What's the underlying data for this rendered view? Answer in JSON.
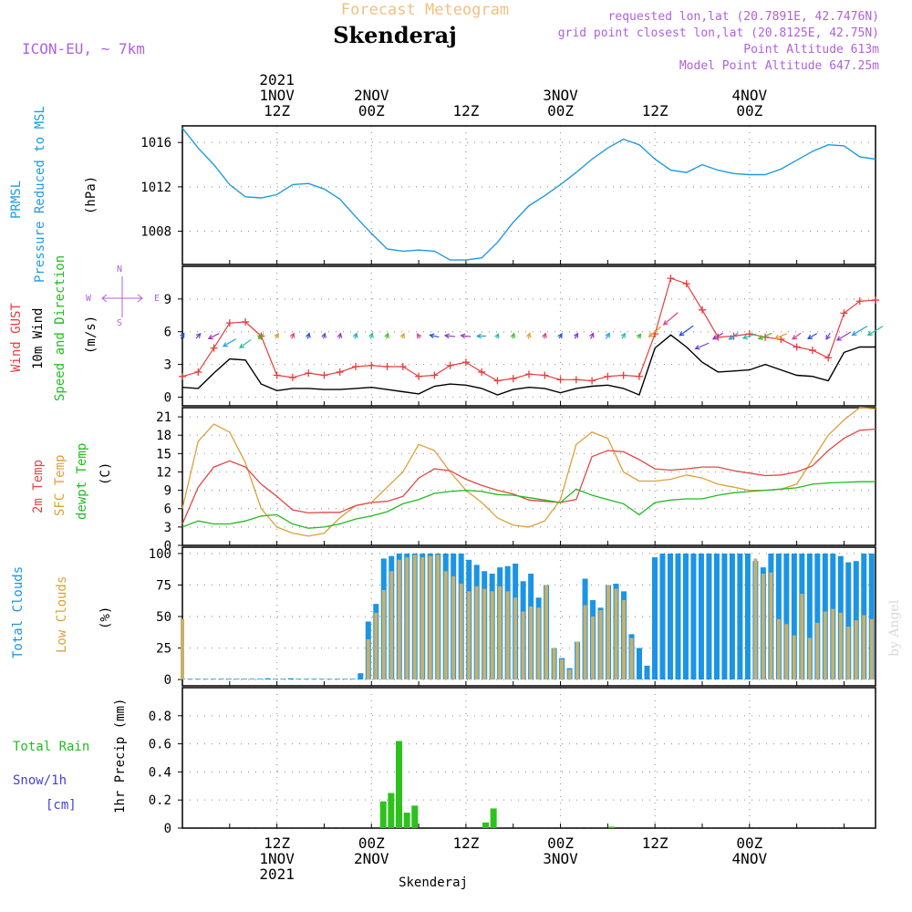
{
  "header": {
    "product": "Forecast Meteogram",
    "model": "ICON-EU, ~ 7km",
    "location": "Skenderaj",
    "requested": "requested lon,lat (20.7891E, 42.7476N)",
    "grid_point": "grid point closest lon,lat (20.8125E, 42.75N)",
    "altitude": "Point Altitude 613m",
    "model_altitude": "Model Point Altitude 647.25m",
    "footer": "Skenderaj",
    "watermark": "by Angel"
  },
  "time_axis": {
    "top_labels": [
      {
        "h": 12,
        "lines": [
          "2021",
          "1NOV",
          "12Z"
        ]
      },
      {
        "h": 24,
        "lines": [
          "2NOV",
          "00Z"
        ]
      },
      {
        "h": 36,
        "lines": [
          "12Z"
        ]
      },
      {
        "h": 48,
        "lines": [
          "3NOV",
          "00Z"
        ]
      },
      {
        "h": 60,
        "lines": [
          "12Z"
        ]
      },
      {
        "h": 72,
        "lines": [
          "4NOV",
          "00Z"
        ]
      }
    ],
    "bottom_labels": [
      {
        "h": 12,
        "lines": [
          "12Z",
          "1NOV",
          "2021"
        ]
      },
      {
        "h": 24,
        "lines": [
          "00Z",
          "2NOV"
        ]
      },
      {
        "h": 36,
        "lines": [
          "12Z"
        ]
      },
      {
        "h": 48,
        "lines": [
          "00Z",
          "3NOV"
        ]
      },
      {
        "h": 60,
        "lines": [
          "12Z"
        ]
      },
      {
        "h": 72,
        "lines": [
          "00Z",
          "4NOV"
        ]
      }
    ]
  },
  "panels": {
    "pressure": {
      "labels": [
        "PRMSL",
        "Pressure Reduced to MSL"
      ],
      "unit": "(hPa)"
    },
    "wind": {
      "labels": [
        "Wind GUST",
        "10m Wind",
        "Speed and Direction"
      ],
      "unit": "(m/s)",
      "compass": [
        "N",
        "S",
        "W",
        "E"
      ]
    },
    "temp": {
      "labels": [
        "2m Temp",
        "SFC Temp",
        "dewpt Temp"
      ],
      "unit": "(C)"
    },
    "clouds": {
      "labels": [
        "Total Clouds",
        "Low Clouds"
      ],
      "unit": "(%)"
    },
    "precip": {
      "labels": [
        "Total  Rain",
        "Snow/1h",
        "[cm]"
      ],
      "unit": "1hr Precip (mm)"
    }
  },
  "colors": {
    "pressure": "#1e9be0",
    "gust": "#e83c3c",
    "wind": "#000000",
    "temp2m": "#e04848",
    "sfc": "#dca03a",
    "dewpt": "#22bb22",
    "total_clouds": "#1b94e4",
    "low_clouds": "#c8b06c",
    "rain": "#2cc21c",
    "label_purple": "#b060e0",
    "header_orange": "#f0c080"
  },
  "chart_data": [
    {
      "type": "line",
      "name": "pressure",
      "ylabel": "(hPa)",
      "ylim": [
        1005,
        1017.5
      ],
      "yticks": [
        1008,
        1012,
        1016
      ],
      "x": [
        0,
        2,
        4,
        6,
        8,
        10,
        12,
        14,
        16,
        18,
        20,
        22,
        24,
        26,
        28,
        30,
        32,
        34,
        36,
        38,
        40,
        42,
        44,
        46,
        48,
        50,
        52,
        54,
        56,
        58,
        60,
        62,
        64,
        66,
        68,
        70,
        72,
        74,
        76,
        78,
        80,
        82,
        84,
        86,
        88
      ],
      "values": [
        1017.3,
        1015.5,
        1014,
        1012.2,
        1011.1,
        1011,
        1011.3,
        1012.2,
        1012.3,
        1011.8,
        1010.9,
        1009.3,
        1007.8,
        1006.4,
        1006.2,
        1006.3,
        1006.2,
        1005.4,
        1005.4,
        1005.6,
        1007.0,
        1008.8,
        1010.3,
        1011.2,
        1012.2,
        1013.3,
        1014.5,
        1015.5,
        1016.3,
        1015.8,
        1014.5,
        1013.5,
        1013.3,
        1014.0,
        1013.5,
        1013.2,
        1013.1,
        1013.1,
        1013.6,
        1014.4,
        1015.2,
        1015.8,
        1015.7,
        1014.7,
        1014.5
      ]
    },
    {
      "type": "line",
      "name": "wind",
      "ylabel": "(m/s)",
      "ylim": [
        -0.8,
        12
      ],
      "yticks": [
        0,
        3,
        6,
        9
      ],
      "x": [
        0,
        2,
        4,
        6,
        8,
        10,
        12,
        14,
        16,
        18,
        20,
        22,
        24,
        26,
        28,
        30,
        32,
        34,
        36,
        38,
        40,
        42,
        44,
        46,
        48,
        50,
        52,
        54,
        56,
        58,
        60,
        62,
        64,
        66,
        68,
        70,
        72,
        74,
        76,
        78,
        80,
        82,
        84,
        86,
        88
      ],
      "gust": [
        1.9,
        2.3,
        4.5,
        6.8,
        6.9,
        5.6,
        2.0,
        1.8,
        2.2,
        2.0,
        2.3,
        2.8,
        2.9,
        2.8,
        2.8,
        1.9,
        2.0,
        2.9,
        3.2,
        2.3,
        1.5,
        1.7,
        2.1,
        2.0,
        1.6,
        1.6,
        1.5,
        1.9,
        2.0,
        1.9,
        5.8,
        10.9,
        10.4,
        8.0,
        5.5,
        5.6,
        5.8,
        5.5,
        5.3,
        4.6,
        4.3,
        3.6,
        7.7,
        8.8,
        8.9
      ],
      "speed": [
        0.9,
        0.8,
        2.2,
        3.5,
        3.4,
        1.2,
        0.6,
        0.8,
        0.8,
        0.7,
        0.7,
        0.8,
        0.9,
        0.7,
        0.5,
        0.3,
        1.0,
        1.2,
        1.1,
        0.8,
        0.2,
        0.7,
        0.9,
        0.8,
        0.4,
        0.8,
        1.0,
        1.1,
        0.8,
        0.2,
        4.5,
        5.7,
        4.6,
        3.2,
        2.3,
        2.4,
        2.5,
        3.0,
        2.5,
        2.0,
        1.9,
        1.5,
        4.1,
        4.6,
        4.6
      ],
      "arrows_x": [
        0,
        2,
        4,
        6,
        8,
        10,
        12,
        14,
        16,
        18,
        20,
        22,
        24,
        26,
        28,
        30,
        32,
        34,
        36,
        38,
        40,
        42,
        44,
        46,
        48,
        50,
        52,
        54,
        56,
        58,
        60,
        62,
        64,
        66,
        68,
        70,
        72,
        74,
        76,
        78,
        80,
        82,
        84,
        86,
        88
      ],
      "arrows_dir": [
        70,
        60,
        220,
        225,
        230,
        240,
        70,
        75,
        80,
        80,
        80,
        80,
        80,
        80,
        75,
        110,
        160,
        170,
        170,
        180,
        75,
        80,
        80,
        80,
        70,
        70,
        75,
        70,
        70,
        65,
        235,
        235,
        230,
        215,
        225,
        230,
        210,
        215,
        215,
        230,
        225,
        250,
        225,
        225,
        225
      ]
    },
    {
      "type": "line",
      "name": "temperature",
      "ylabel": "(C)",
      "ylim": [
        0,
        22.5
      ],
      "yticks": [
        0,
        3,
        6,
        9,
        12,
        15,
        18,
        21
      ],
      "x": [
        0,
        2,
        4,
        6,
        8,
        10,
        12,
        14,
        16,
        18,
        20,
        22,
        24,
        26,
        28,
        30,
        32,
        34,
        36,
        38,
        40,
        42,
        44,
        46,
        48,
        50,
        52,
        54,
        56,
        58,
        60,
        62,
        64,
        66,
        68,
        70,
        72,
        74,
        76,
        78,
        80,
        82,
        84,
        86,
        88
      ],
      "temp2m": [
        3.5,
        9.5,
        12.8,
        13.8,
        12.8,
        10.0,
        8.0,
        5.8,
        5.3,
        5.4,
        5.4,
        6.5,
        7.0,
        7.2,
        8.0,
        11.0,
        12.5,
        12.2,
        10.8,
        9.8,
        9.0,
        8.4,
        7.4,
        7.2,
        7.0,
        7.5,
        14.5,
        15.5,
        15.3,
        14.0,
        12.5,
        12.3,
        12.5,
        12.8,
        12.8,
        12.2,
        11.8,
        11.4,
        11.5,
        12.0,
        13.0,
        15.5,
        17.5,
        18.8,
        19.0
      ],
      "sfc": [
        6.0,
        17.0,
        19.8,
        18.5,
        13.5,
        6.0,
        3.0,
        2.0,
        1.5,
        2.0,
        4.5,
        6.5,
        7.0,
        9.5,
        12.0,
        16.5,
        15.5,
        12.0,
        9.0,
        7.0,
        4.5,
        3.3,
        3.0,
        4.0,
        7.5,
        16.5,
        18.5,
        17.5,
        12.0,
        10.5,
        10.5,
        10.8,
        11.5,
        11.0,
        10.0,
        9.5,
        9.0,
        9.0,
        9.2,
        10.0,
        14.0,
        18.0,
        20.5,
        22.5,
        22.3
      ],
      "dewpt": [
        3.0,
        4.0,
        3.5,
        3.5,
        4.0,
        4.8,
        5.0,
        3.5,
        2.8,
        3.0,
        3.5,
        4.3,
        4.8,
        5.5,
        6.8,
        7.5,
        8.5,
        8.8,
        9.0,
        8.8,
        8.3,
        8.2,
        7.8,
        7.4,
        7.0,
        9.2,
        8.2,
        7.5,
        6.8,
        5.0,
        7.0,
        7.4,
        7.6,
        7.6,
        8.2,
        8.6,
        8.8,
        9.0,
        9.2,
        9.4,
        10.0,
        10.2,
        10.3,
        10.4,
        10.4
      ]
    },
    {
      "type": "bar",
      "name": "clouds",
      "ylabel": "(%)",
      "ylim": [
        -5,
        105
      ],
      "yticks": [
        0,
        25,
        50,
        75,
        100
      ],
      "total": [
        0,
        0,
        0,
        0,
        0,
        0,
        0,
        0,
        0,
        0,
        0,
        1,
        0,
        0,
        1,
        0,
        0,
        0,
        0,
        0,
        0,
        0,
        0,
        5,
        46,
        60,
        96,
        98,
        100,
        100,
        100,
        100,
        100,
        100,
        100,
        100,
        100,
        95,
        91,
        86,
        84,
        89,
        90,
        92,
        78,
        84,
        65,
        75,
        25,
        17,
        9,
        30,
        80,
        63,
        57,
        75,
        76,
        70,
        36,
        25,
        11,
        97,
        100,
        100,
        100,
        100,
        100,
        100,
        100,
        100,
        100,
        100,
        100,
        100,
        94,
        89,
        100,
        100,
        100,
        100,
        100,
        100,
        100,
        100,
        100,
        98,
        93,
        94,
        100,
        100
      ],
      "low": [
        48,
        0,
        0,
        0,
        0,
        0,
        0,
        0,
        0,
        0,
        0,
        0,
        0,
        0,
        0,
        0,
        0,
        0,
        0,
        0,
        0,
        0,
        0,
        0,
        32,
        53,
        71,
        86,
        95,
        97,
        99,
        97,
        98,
        99,
        86,
        82,
        76,
        70,
        74,
        72,
        70,
        74,
        70,
        65,
        54,
        58,
        57,
        75,
        25,
        16,
        8,
        30,
        59,
        50,
        55,
        75,
        72,
        63,
        33,
        0,
        0,
        0,
        0,
        0,
        0,
        0,
        0,
        0,
        0,
        0,
        0,
        0,
        0,
        0,
        96,
        84,
        85,
        48,
        44,
        35,
        68,
        33,
        45,
        54,
        56,
        53,
        42,
        47,
        51,
        48
      ]
    },
    {
      "type": "bar",
      "name": "precip",
      "ylabel": "1hr Precip (mm)",
      "ylim": [
        0,
        1.0
      ],
      "yticks": [
        0,
        0.2,
        0.4,
        0.6,
        0.8
      ],
      "x": [
        25.5,
        26.5,
        27.5,
        28.5,
        29.5,
        38.5,
        39.5,
        54.5
      ],
      "values": [
        0.19,
        0.25,
        0.62,
        0.11,
        0.16,
        0.04,
        0.14,
        0.01
      ]
    }
  ]
}
